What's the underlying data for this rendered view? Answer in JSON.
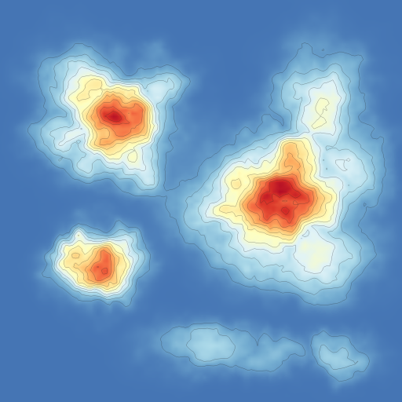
{
  "chart_data": {
    "type": "heatmap",
    "title": "",
    "xlabel": "",
    "ylabel": "",
    "legend": "none",
    "grid": false,
    "value_range": [
      0,
      1
    ],
    "colormap": [
      "#4575b4",
      "#74add1",
      "#abd9e9",
      "#e0f3f8",
      "#ffffbf",
      "#fee090",
      "#fdae61",
      "#f46d43",
      "#d73027",
      "#a50026"
    ],
    "contour_levels": [
      0.08,
      0.16,
      0.24,
      0.32,
      0.4,
      0.48,
      0.56,
      0.64,
      0.72,
      0.8,
      0.88
    ],
    "contour_color": "#2b2b2b",
    "hotspots": [
      {
        "name": "upper-left",
        "peak": 0.92
      },
      {
        "name": "right-center",
        "peak": 0.95
      },
      {
        "name": "lower-left",
        "peak": 0.78
      },
      {
        "name": "bottom",
        "peak": 0.22
      }
    ]
  }
}
